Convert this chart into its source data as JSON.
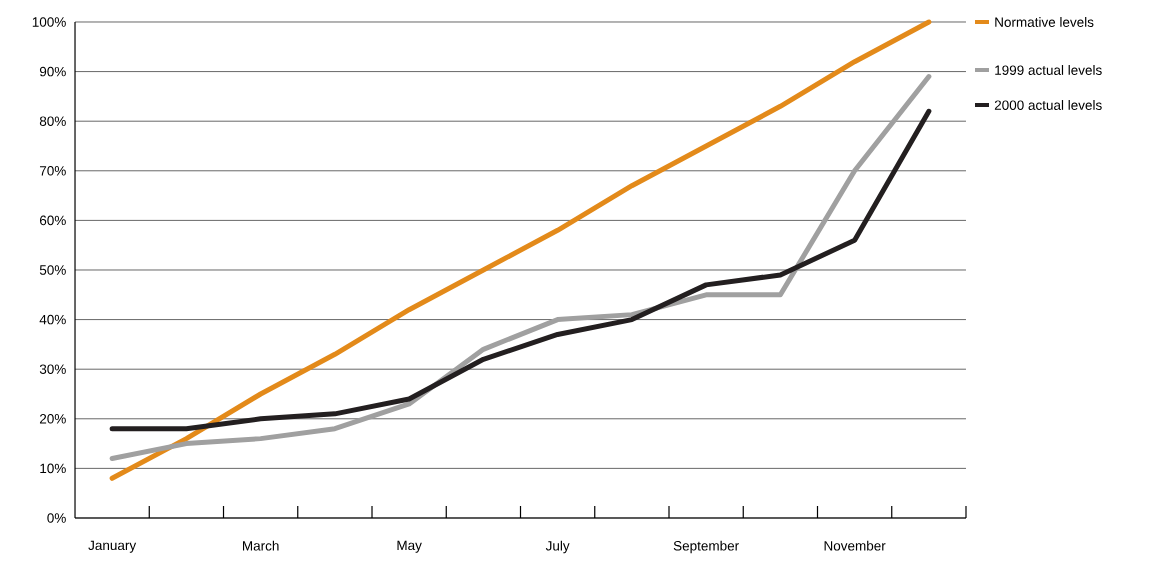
{
  "chart_data": {
    "type": "line",
    "categories": [
      "January",
      null,
      "March",
      null,
      "May",
      null,
      "July",
      null,
      "September",
      null,
      "November",
      null
    ],
    "series": [
      {
        "name": "Normative levels",
        "color": "#e38a1a",
        "values": [
          8,
          16,
          25,
          33,
          42,
          50,
          58,
          67,
          75,
          83,
          92,
          100
        ]
      },
      {
        "name": "1999 actual levels",
        "color": "#a0a0a0",
        "values": [
          12,
          15,
          16,
          18,
          23,
          34,
          40,
          41,
          45,
          45,
          70,
          89
        ]
      },
      {
        "name": "2000 actual levels",
        "color": "#231f20",
        "values": [
          18,
          18,
          20,
          21,
          24,
          32,
          37,
          40,
          47,
          49,
          56,
          82
        ]
      }
    ],
    "ylim": [
      0,
      100
    ],
    "yticks": [
      {
        "value": 0,
        "label": "0%"
      },
      {
        "value": 10,
        "label": "10%"
      },
      {
        "value": 20,
        "label": "20%"
      },
      {
        "value": 30,
        "label": "30%"
      },
      {
        "value": 40,
        "label": "40%"
      },
      {
        "value": 50,
        "label": "50%"
      },
      {
        "value": 60,
        "label": "60%"
      },
      {
        "value": 70,
        "label": "70%"
      },
      {
        "value": 80,
        "label": "80%"
      },
      {
        "value": 90,
        "label": "90%"
      },
      {
        "value": 100,
        "label": "100%"
      }
    ],
    "grid": "y",
    "legend": "right",
    "marker": "none",
    "line_style": "solid"
  }
}
